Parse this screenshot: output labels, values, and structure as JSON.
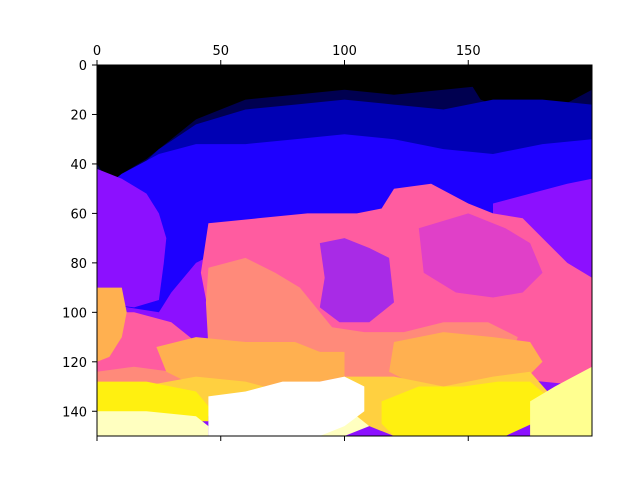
{
  "chart_data": {
    "type": "heatmap",
    "title": "",
    "xlabel": "",
    "ylabel": "",
    "x_axis_position": "top",
    "xlim": [
      0,
      200
    ],
    "ylim": [
      150,
      0
    ],
    "x_ticks": [
      0,
      50,
      100,
      150
    ],
    "y_ticks": [
      0,
      20,
      40,
      60,
      80,
      100,
      120,
      140
    ],
    "x_tick_labels": [
      "0",
      "50",
      "100",
      "150"
    ],
    "y_tick_labels": [
      "0",
      "20",
      "40",
      "60",
      "80",
      "100",
      "120",
      "140"
    ],
    "grid": false,
    "legend": "none",
    "colormap": "gnuplot2",
    "palette": {
      "black": "#000000",
      "navy": "#000050",
      "dark_blue": "#0000B4",
      "blue": "#1E00FF",
      "violet": "#8C10FF",
      "purple": "#A82BE6",
      "magenta": "#E040C8",
      "pink": "#FF5CA0",
      "salmon": "#FF8A7A",
      "orange": "#FFB050",
      "gold": "#FFD040",
      "yellow": "#FFF010",
      "pale_yellow": "#FFFF90",
      "cream": "#FFFFC0",
      "white": "#FFFFFF"
    },
    "regions": [
      {
        "color": "navy",
        "points": [
          [
            0,
            0
          ],
          [
            200,
            0
          ],
          [
            200,
            50
          ],
          [
            0,
            50
          ]
        ]
      },
      {
        "color": "black",
        "points": [
          [
            0,
            0
          ],
          [
            200,
            0
          ],
          [
            200,
            8
          ],
          [
            180,
            10
          ],
          [
            160,
            8
          ],
          [
            140,
            10
          ],
          [
            120,
            12
          ],
          [
            100,
            10
          ],
          [
            80,
            12
          ],
          [
            60,
            14
          ],
          [
            40,
            22
          ],
          [
            30,
            30
          ],
          [
            20,
            38
          ],
          [
            10,
            44
          ],
          [
            5,
            48
          ],
          [
            0,
            40
          ]
        ]
      },
      {
        "color": "black",
        "points": [
          [
            150,
            0
          ],
          [
            200,
            0
          ],
          [
            200,
            10
          ],
          [
            185,
            18
          ],
          [
            170,
            20
          ],
          [
            155,
            14
          ],
          [
            150,
            6
          ]
        ]
      },
      {
        "color": "dark_blue",
        "points": [
          [
            10,
            48
          ],
          [
            25,
            34
          ],
          [
            40,
            24
          ],
          [
            60,
            18
          ],
          [
            80,
            16
          ],
          [
            100,
            14
          ],
          [
            120,
            16
          ],
          [
            140,
            18
          ],
          [
            160,
            14
          ],
          [
            180,
            14
          ],
          [
            200,
            16
          ],
          [
            200,
            50
          ],
          [
            0,
            52
          ]
        ]
      },
      {
        "color": "blue",
        "points": [
          [
            0,
            52
          ],
          [
            10,
            44
          ],
          [
            25,
            36
          ],
          [
            40,
            32
          ],
          [
            60,
            32
          ],
          [
            80,
            30
          ],
          [
            100,
            28
          ],
          [
            120,
            30
          ],
          [
            140,
            34
          ],
          [
            160,
            36
          ],
          [
            180,
            32
          ],
          [
            200,
            30
          ],
          [
            200,
            60
          ],
          [
            180,
            58
          ],
          [
            160,
            62
          ],
          [
            140,
            60
          ],
          [
            120,
            62
          ],
          [
            100,
            64
          ],
          [
            80,
            66
          ],
          [
            60,
            70
          ],
          [
            40,
            80
          ],
          [
            30,
            92
          ],
          [
            25,
            100
          ],
          [
            0,
            96
          ]
        ]
      },
      {
        "color": "violet",
        "points": [
          [
            0,
            42
          ],
          [
            10,
            46
          ],
          [
            20,
            52
          ],
          [
            25,
            60
          ],
          [
            28,
            70
          ],
          [
            27,
            80
          ],
          [
            25,
            95
          ],
          [
            15,
            98
          ],
          [
            0,
            96
          ]
        ]
      },
      {
        "color": "violet",
        "points": [
          [
            160,
            56
          ],
          [
            175,
            52
          ],
          [
            190,
            48
          ],
          [
            200,
            46
          ],
          [
            200,
            95
          ],
          [
            190,
            92
          ],
          [
            175,
            82
          ],
          [
            165,
            70
          ],
          [
            160,
            62
          ]
        ]
      },
      {
        "color": "pink",
        "points": [
          [
            45,
            64
          ],
          [
            65,
            62
          ],
          [
            85,
            60
          ],
          [
            105,
            60
          ],
          [
            115,
            58
          ],
          [
            120,
            50
          ],
          [
            135,
            48
          ],
          [
            150,
            56
          ],
          [
            160,
            60
          ],
          [
            172,
            62
          ],
          [
            182,
            72
          ],
          [
            190,
            80
          ],
          [
            200,
            86
          ],
          [
            200,
            130
          ],
          [
            180,
            128
          ],
          [
            160,
            126
          ],
          [
            140,
            126
          ],
          [
            120,
            128
          ],
          [
            100,
            128
          ],
          [
            80,
            124
          ],
          [
            60,
            116
          ],
          [
            45,
            100
          ],
          [
            42,
            84
          ]
        ]
      },
      {
        "color": "pink",
        "points": [
          [
            0,
            100
          ],
          [
            15,
            100
          ],
          [
            30,
            104
          ],
          [
            40,
            112
          ],
          [
            45,
            120
          ],
          [
            40,
            128
          ],
          [
            30,
            132
          ],
          [
            10,
            134
          ],
          [
            0,
            136
          ]
        ]
      },
      {
        "color": "magenta",
        "points": [
          [
            130,
            66
          ],
          [
            150,
            60
          ],
          [
            165,
            66
          ],
          [
            175,
            72
          ],
          [
            180,
            84
          ],
          [
            172,
            92
          ],
          [
            160,
            94
          ],
          [
            145,
            92
          ],
          [
            132,
            84
          ]
        ]
      },
      {
        "color": "purple",
        "points": [
          [
            90,
            72
          ],
          [
            100,
            70
          ],
          [
            110,
            74
          ],
          [
            118,
            78
          ],
          [
            120,
            96
          ],
          [
            110,
            104
          ],
          [
            98,
            104
          ],
          [
            90,
            98
          ],
          [
            92,
            86
          ]
        ]
      },
      {
        "color": "salmon",
        "points": [
          [
            45,
            82
          ],
          [
            60,
            78
          ],
          [
            72,
            84
          ],
          [
            82,
            90
          ],
          [
            95,
            106
          ],
          [
            108,
            108
          ],
          [
            124,
            108
          ],
          [
            140,
            104
          ],
          [
            158,
            104
          ],
          [
            170,
            110
          ],
          [
            165,
            124
          ],
          [
            140,
            128
          ],
          [
            120,
            130
          ],
          [
            100,
            130
          ],
          [
            80,
            128
          ],
          [
            60,
            124
          ],
          [
            45,
            114
          ],
          [
            44,
            96
          ]
        ]
      },
      {
        "color": "salmon",
        "points": [
          [
            0,
            124
          ],
          [
            15,
            122
          ],
          [
            30,
            124
          ],
          [
            45,
            126
          ],
          [
            60,
            130
          ],
          [
            60,
            138
          ],
          [
            40,
            140
          ],
          [
            20,
            140
          ],
          [
            0,
            138
          ]
        ]
      },
      {
        "color": "orange",
        "points": [
          [
            0,
            90
          ],
          [
            10,
            90
          ],
          [
            12,
            100
          ],
          [
            10,
            110
          ],
          [
            5,
            118
          ],
          [
            0,
            120
          ]
        ]
      },
      {
        "color": "orange",
        "points": [
          [
            24,
            114
          ],
          [
            40,
            110
          ],
          [
            60,
            112
          ],
          [
            80,
            112
          ],
          [
            90,
            116
          ],
          [
            100,
            116
          ],
          [
            100,
            126
          ],
          [
            80,
            130
          ],
          [
            60,
            132
          ],
          [
            40,
            130
          ],
          [
            28,
            124
          ]
        ]
      },
      {
        "color": "orange",
        "points": [
          [
            120,
            112
          ],
          [
            140,
            108
          ],
          [
            160,
            110
          ],
          [
            175,
            112
          ],
          [
            180,
            120
          ],
          [
            170,
            130
          ],
          [
            150,
            132
          ],
          [
            130,
            130
          ],
          [
            118,
            124
          ]
        ]
      },
      {
        "color": "gold",
        "points": [
          [
            18,
            130
          ],
          [
            40,
            126
          ],
          [
            60,
            128
          ],
          [
            75,
            132
          ],
          [
            80,
            138
          ],
          [
            60,
            142
          ],
          [
            40,
            142
          ],
          [
            18,
            140
          ]
        ]
      },
      {
        "color": "gold",
        "points": [
          [
            100,
            126
          ],
          [
            120,
            126
          ],
          [
            140,
            130
          ],
          [
            160,
            126
          ],
          [
            175,
            124
          ],
          [
            182,
            132
          ],
          [
            175,
            142
          ],
          [
            160,
            148
          ],
          [
            140,
            150
          ],
          [
            120,
            150
          ],
          [
            110,
            146
          ],
          [
            100,
            140
          ]
        ]
      },
      {
        "color": "yellow",
        "points": [
          [
            0,
            128
          ],
          [
            20,
            128
          ],
          [
            40,
            132
          ],
          [
            45,
            138
          ],
          [
            45,
            144
          ],
          [
            30,
            144
          ],
          [
            10,
            144
          ],
          [
            0,
            144
          ]
        ]
      },
      {
        "color": "yellow",
        "points": [
          [
            115,
            136
          ],
          [
            130,
            130
          ],
          [
            148,
            130
          ],
          [
            162,
            128
          ],
          [
            175,
            128
          ],
          [
            182,
            134
          ],
          [
            178,
            144
          ],
          [
            165,
            150
          ],
          [
            140,
            150
          ],
          [
            120,
            150
          ],
          [
            115,
            145
          ]
        ]
      },
      {
        "color": "pale_yellow",
        "points": [
          [
            175,
            136
          ],
          [
            185,
            130
          ],
          [
            200,
            122
          ],
          [
            200,
            150
          ],
          [
            175,
            150
          ]
        ]
      },
      {
        "color": "cream",
        "points": [
          [
            0,
            140
          ],
          [
            20,
            140
          ],
          [
            40,
            142
          ],
          [
            45,
            146
          ],
          [
            45,
            150
          ],
          [
            0,
            150
          ]
        ]
      },
      {
        "color": "cream",
        "points": [
          [
            74,
            140
          ],
          [
            85,
            136
          ],
          [
            100,
            138
          ],
          [
            105,
            142
          ],
          [
            110,
            146
          ],
          [
            100,
            150
          ],
          [
            80,
            150
          ]
        ]
      },
      {
        "color": "white",
        "points": [
          [
            45,
            134
          ],
          [
            60,
            132
          ],
          [
            75,
            128
          ],
          [
            90,
            128
          ],
          [
            100,
            126
          ],
          [
            108,
            130
          ],
          [
            108,
            140
          ],
          [
            100,
            146
          ],
          [
            90,
            150
          ],
          [
            60,
            150
          ],
          [
            45,
            150
          ]
        ]
      }
    ]
  }
}
